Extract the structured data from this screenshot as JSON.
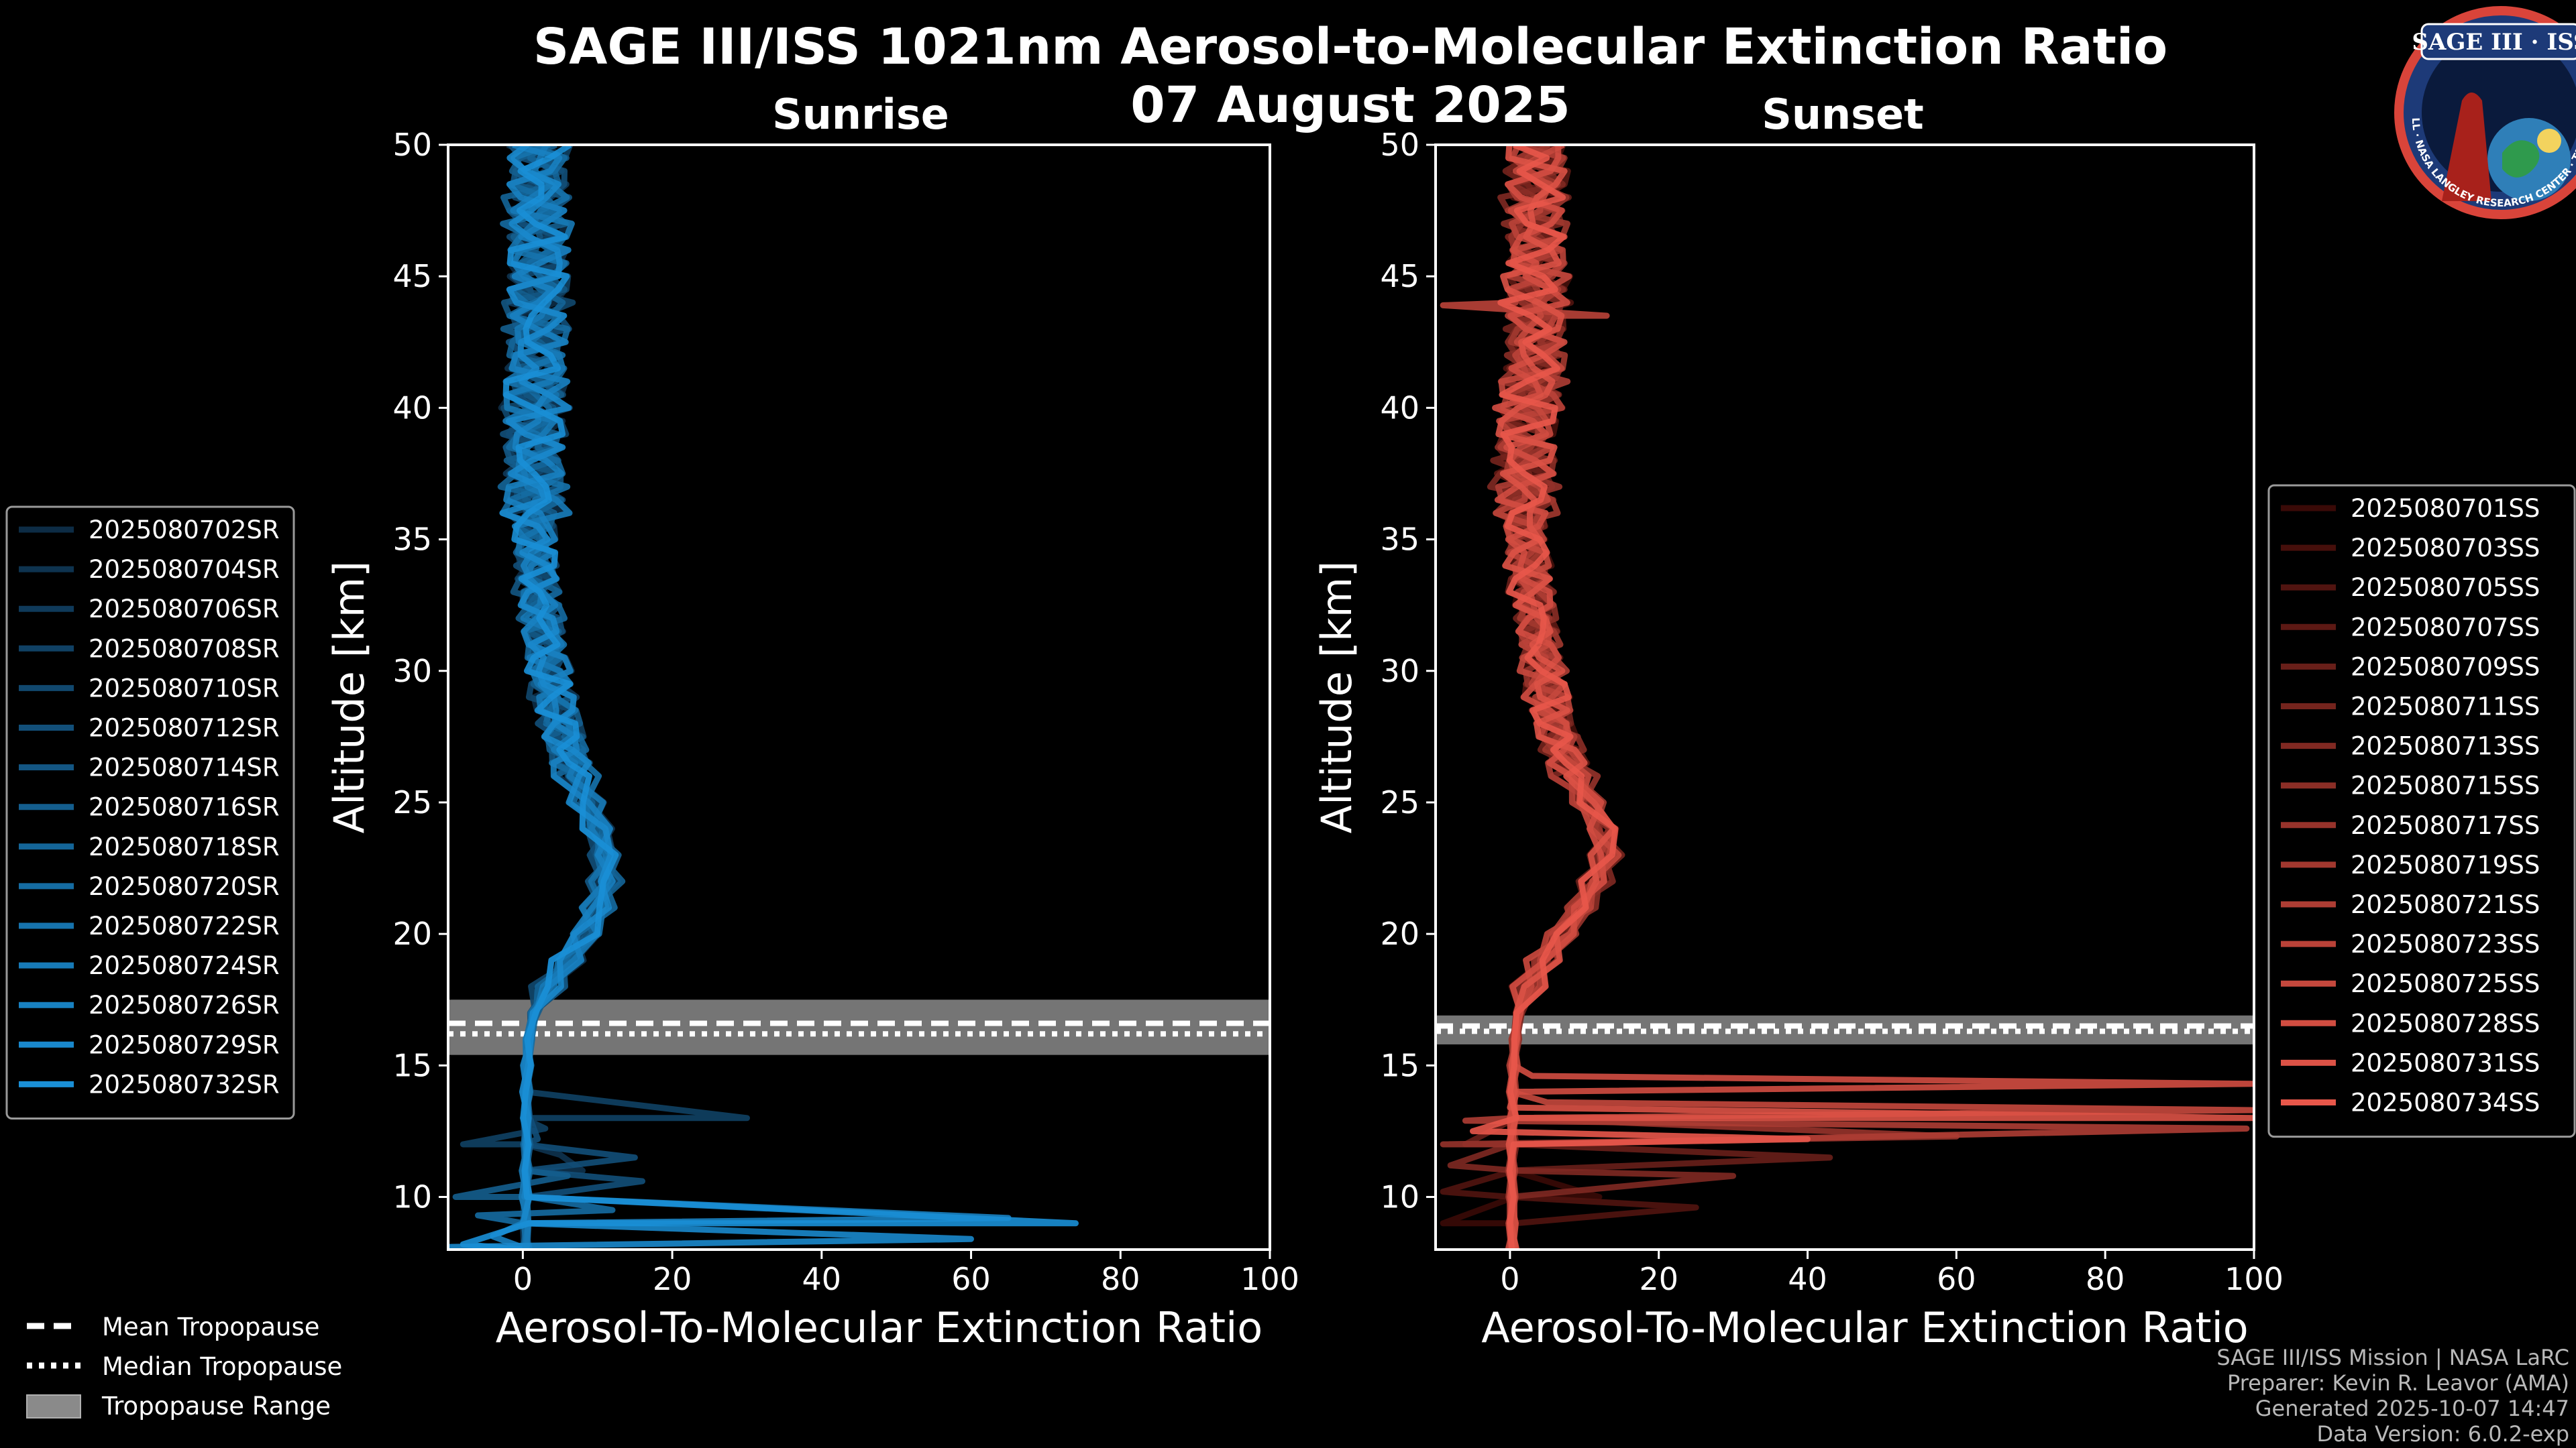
{
  "title_line1": "SAGE III/ISS 1021nm Aerosol-to-Molecular Extinction Ratio",
  "title_line2": "07 August 2025",
  "logo": {
    "text": "SAGE III · ISS",
    "ring_text": "BALL · NASA LANGLEY RESEARCH CENTER · TAS-I · ESA"
  },
  "footer": {
    "line1": "SAGE III/ISS Mission | NASA LaRC",
    "line2": "Preparer: Kevin R. Leavor (AMA)",
    "line3": "Generated 2025-10-07 14:47",
    "line4": "Data Version: 6.0.2-exp"
  },
  "tropopause_legend": {
    "mean": "Mean Tropopause",
    "median": "Median Tropopause",
    "range": "Tropopause Range"
  },
  "chart_data": [
    {
      "type": "line",
      "title": "Sunrise",
      "xlabel": "Aerosol-To-Molecular Extinction Ratio",
      "ylabel": "Altitude [km]",
      "xlim": [
        -10,
        100
      ],
      "ylim": [
        8,
        50
      ],
      "xticks": [
        "0",
        "20",
        "40",
        "60",
        "80",
        "100"
      ],
      "yticks": [
        "10",
        "15",
        "20",
        "25",
        "30",
        "35",
        "40",
        "45",
        "50"
      ],
      "tropopause": {
        "mean_km": 16.6,
        "median_km": 16.2,
        "range_km": [
          15.4,
          17.5
        ]
      },
      "color_from": "#0d2c45",
      "color_to": "#1a8fd6",
      "profile_km": [
        8,
        9,
        10,
        11,
        12,
        13,
        14,
        15,
        16,
        17,
        18,
        19,
        20,
        21,
        22,
        23,
        24,
        25,
        26,
        27,
        28,
        29,
        30,
        31,
        32,
        33,
        34,
        35,
        36,
        37,
        38,
        39,
        40,
        41,
        42,
        43,
        44,
        45,
        46,
        47,
        48,
        49,
        50
      ],
      "profile_ratio": [
        0.4,
        0.4,
        0.4,
        0.4,
        0.5,
        0.5,
        0.5,
        0.6,
        0.8,
        1.5,
        3.5,
        6,
        8.5,
        10,
        11,
        11,
        10,
        8.5,
        7,
        6,
        5,
        4,
        3.5,
        3,
        2.5,
        2,
        1.8,
        1.6,
        1.5,
        1.5,
        1.5,
        1.5,
        1.5,
        1.6,
        1.8,
        2,
        2,
        2,
        2,
        2,
        2,
        2,
        2
      ],
      "series": [
        {
          "name": "2025080702SR",
          "spike": []
        },
        {
          "name": "2025080704SR",
          "spike": [
            [
              11.0,
              8
            ],
            [
              11.6,
              5
            ]
          ]
        },
        {
          "name": "2025080706SR",
          "spike": []
        },
        {
          "name": "2025080708SR",
          "spike": [
            [
              12.0,
              -8
            ],
            [
              13.0,
              30
            ],
            [
              12.6,
              3
            ]
          ]
        },
        {
          "name": "2025080710SR",
          "spike": []
        },
        {
          "name": "2025080712SR",
          "spike": [
            [
              10.6,
              16
            ],
            [
              11.5,
              15
            ],
            [
              12.2,
              2
            ]
          ]
        },
        {
          "name": "2025080714SR",
          "spike": []
        },
        {
          "name": "2025080716SR",
          "spike": [
            [
              10.0,
              -9
            ],
            [
              10.8,
              6
            ]
          ]
        },
        {
          "name": "2025080718SR",
          "spike": []
        },
        {
          "name": "2025080720SR",
          "spike": [
            [
              9.3,
              -6
            ],
            [
              9.5,
              12
            ]
          ]
        },
        {
          "name": "2025080722SR",
          "spike": []
        },
        {
          "name": "2025080724SR",
          "spike": []
        },
        {
          "name": "2025080726SR",
          "spike": [
            [
              8.5,
              -4
            ],
            [
              9.2,
              65
            ]
          ]
        },
        {
          "name": "2025080729SR",
          "spike": [
            [
              8.1,
              -10
            ],
            [
              8.4,
              60
            ]
          ]
        },
        {
          "name": "2025080732SR",
          "spike": [
            [
              8.2,
              -8
            ],
            [
              9.0,
              74
            ]
          ]
        }
      ]
    },
    {
      "type": "line",
      "title": "Sunset",
      "xlabel": "Aerosol-To-Molecular Extinction Ratio",
      "ylabel": "Altitude [km]",
      "xlim": [
        -10,
        100
      ],
      "ylim": [
        8,
        50
      ],
      "xticks": [
        "0",
        "20",
        "40",
        "60",
        "80",
        "100"
      ],
      "yticks": [
        "10",
        "15",
        "20",
        "25",
        "30",
        "35",
        "40",
        "45",
        "50"
      ],
      "tropopause": {
        "mean_km": 16.5,
        "median_km": 16.3,
        "range_km": [
          15.8,
          16.9
        ]
      },
      "color_from": "#3a0a07",
      "color_to": "#e8574a",
      "profile_km": [
        8,
        9,
        10,
        11,
        12,
        13,
        14,
        15,
        16,
        17,
        18,
        19,
        20,
        21,
        22,
        23,
        24,
        25,
        26,
        27,
        28,
        29,
        30,
        31,
        32,
        33,
        34,
        35,
        36,
        37,
        38,
        39,
        40,
        41,
        42,
        43,
        44,
        45,
        46,
        47,
        48,
        49,
        50
      ],
      "profile_ratio": [
        0.3,
        0.3,
        0.3,
        0.3,
        0.3,
        0.4,
        0.4,
        0.5,
        0.7,
        1.2,
        2.5,
        4.5,
        7,
        9.5,
        11.5,
        13,
        12.5,
        10.5,
        8.5,
        7,
        6,
        5,
        4.5,
        4,
        3.5,
        3,
        2.5,
        2.2,
        2,
        2,
        2.1,
        2.2,
        2.5,
        3,
        3.5,
        3.5,
        3.5,
        3.5,
        3.5,
        3.5,
        3.5,
        3.5,
        3.5
      ],
      "series": [
        {
          "name": "2025080701SS",
          "spike": [
            [
              9.0,
              -9
            ],
            [
              10.0,
              12
            ]
          ]
        },
        {
          "name": "2025080703SS",
          "spike": []
        },
        {
          "name": "2025080705SS",
          "spike": [
            [
              9.6,
              25
            ],
            [
              10.2,
              -9
            ]
          ]
        },
        {
          "name": "2025080707SS",
          "spike": []
        },
        {
          "name": "2025080709SS",
          "spike": [
            [
              11.5,
              43
            ],
            [
              12.0,
              -6
            ]
          ]
        },
        {
          "name": "2025080711SS",
          "spike": []
        },
        {
          "name": "2025080713SS",
          "spike": [
            [
              10.8,
              30
            ],
            [
              11.2,
              -8
            ]
          ]
        },
        {
          "name": "2025080715SS",
          "spike": []
        },
        {
          "name": "2025080717SS",
          "spike": [
            [
              12.0,
              -9
            ],
            [
              12.3,
              60
            ]
          ]
        },
        {
          "name": "2025080719SS",
          "spike": []
        },
        {
          "name": "2025080721SS",
          "spike": [
            [
              12.6,
              99
            ],
            [
              12.9,
              -6
            ]
          ]
        },
        {
          "name": "2025080723SS",
          "spike": [
            [
              43.9,
              -9
            ],
            [
              43.5,
              13
            ]
          ]
        },
        {
          "name": "2025080725SS",
          "spike": [
            [
              13.3,
              100
            ],
            [
              13.6,
              5
            ]
          ]
        },
        {
          "name": "2025080728SS",
          "spike": [
            [
              14.3,
              100
            ],
            [
              14.6,
              3
            ]
          ]
        },
        {
          "name": "2025080731SS",
          "spike": [
            [
              13.0,
              100
            ],
            [
              13.4,
              0
            ]
          ]
        },
        {
          "name": "2025080734SS",
          "spike": [
            [
              12.2,
              40
            ],
            [
              12.5,
              -5
            ]
          ]
        }
      ]
    }
  ]
}
